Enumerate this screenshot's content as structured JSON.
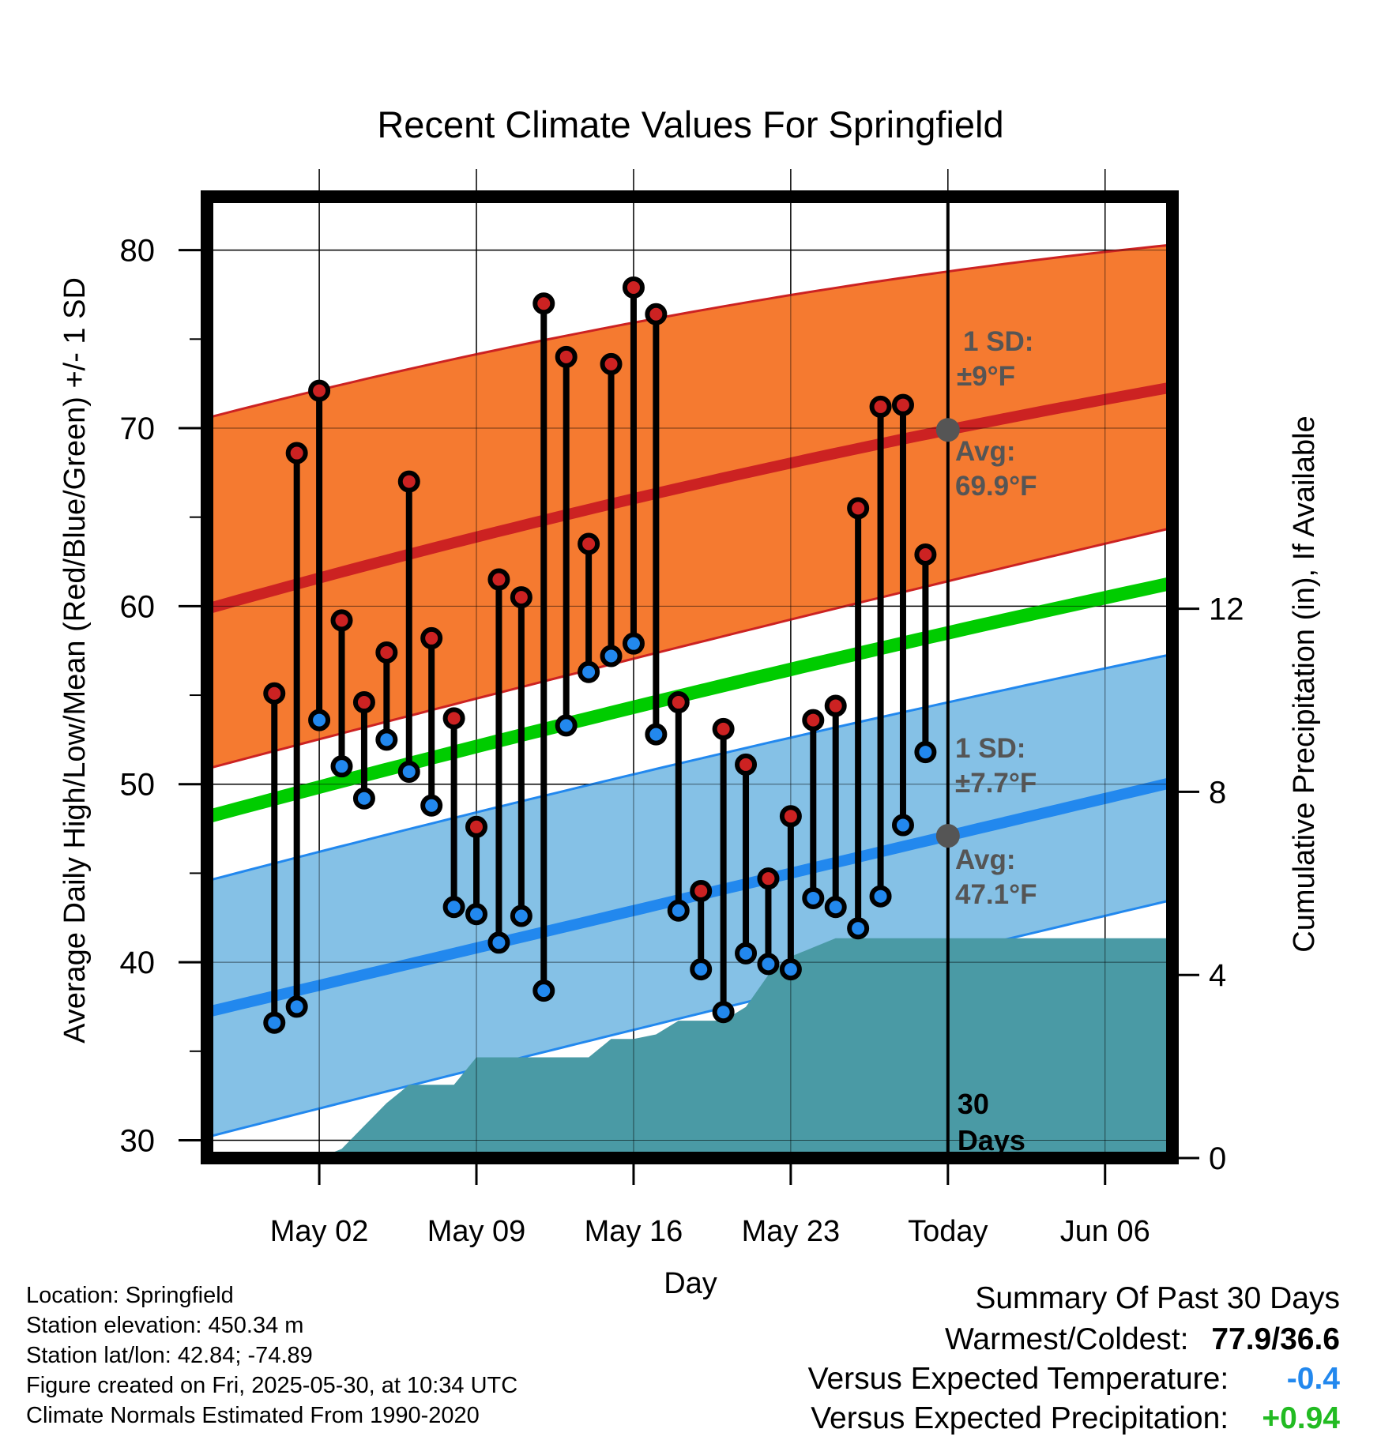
{
  "chart_data": {
    "type": "line",
    "title": "Recent Climate Values For Springfield",
    "xlabel": "Day",
    "ylabel": "Average Daily High/Low/Mean (Red/Blue/Green) +/- 1 SD",
    "y2label": "Cumulative Precipitation (in), If Available",
    "ylim": [
      29,
      83
    ],
    "y2lim": [
      0,
      21
    ],
    "xlim": [
      "2025-04-27",
      "2025-06-09"
    ],
    "x_ticks": [
      {
        "date": "2025-05-02",
        "label": "May 02"
      },
      {
        "date": "2025-05-09",
        "label": "May 09"
      },
      {
        "date": "2025-05-16",
        "label": "May 16"
      },
      {
        "date": "2025-05-23",
        "label": "May 23"
      },
      {
        "date": "2025-05-30",
        "label": "Today"
      },
      {
        "date": "2025-06-06",
        "label": "Jun 06"
      }
    ],
    "y_ticks": [
      30,
      40,
      50,
      60,
      70,
      80
    ],
    "y2_ticks": [
      0,
      4,
      8,
      12
    ],
    "grid": true,
    "today": "2025-05-30",
    "today_label": [
      "30",
      "Days"
    ],
    "normals": {
      "x": [
        "2025-04-28",
        "2025-05-30",
        "2025-06-09"
      ],
      "high_mean": [
        60.2,
        69.9,
        72.3
      ],
      "high_upper": [
        70.9,
        78.8,
        80.3
      ],
      "high_lower": [
        51.2,
        61.4,
        64.4
      ],
      "low_mean": [
        37.5,
        47.1,
        50.1
      ],
      "low_upper": [
        44.9,
        54.6,
        57.3
      ],
      "low_lower": [
        30.5,
        40.5,
        43.5
      ],
      "mean": [
        48.5,
        58.5,
        61.3
      ]
    },
    "series": [
      {
        "name": "Daily High",
        "color": "#cc2222",
        "x": [
          "2025-04-30",
          "2025-05-01",
          "2025-05-02",
          "2025-05-03",
          "2025-05-04",
          "2025-05-05",
          "2025-05-06",
          "2025-05-07",
          "2025-05-08",
          "2025-05-09",
          "2025-05-10",
          "2025-05-11",
          "2025-05-12",
          "2025-05-13",
          "2025-05-14",
          "2025-05-15",
          "2025-05-16",
          "2025-05-17",
          "2025-05-18",
          "2025-05-19",
          "2025-05-20",
          "2025-05-21",
          "2025-05-22",
          "2025-05-23",
          "2025-05-24",
          "2025-05-25",
          "2025-05-26",
          "2025-05-27",
          "2025-05-28",
          "2025-05-29"
        ],
        "values": [
          55.1,
          68.6,
          72.1,
          59.2,
          54.6,
          57.4,
          67.0,
          58.2,
          53.7,
          47.6,
          61.5,
          60.5,
          77.0,
          74.0,
          63.5,
          73.6,
          77.9,
          76.4,
          54.6,
          44.0,
          53.1,
          51.1,
          44.7,
          48.2,
          53.6,
          54.4,
          65.5,
          71.2,
          71.3,
          62.9
        ]
      },
      {
        "name": "Daily Low",
        "color": "#2288ee",
        "x": [
          "2025-04-30",
          "2025-05-01",
          "2025-05-02",
          "2025-05-03",
          "2025-05-04",
          "2025-05-05",
          "2025-05-06",
          "2025-05-07",
          "2025-05-08",
          "2025-05-09",
          "2025-05-10",
          "2025-05-11",
          "2025-05-12",
          "2025-05-13",
          "2025-05-14",
          "2025-05-15",
          "2025-05-16",
          "2025-05-17",
          "2025-05-18",
          "2025-05-19",
          "2025-05-20",
          "2025-05-21",
          "2025-05-22",
          "2025-05-23",
          "2025-05-24",
          "2025-05-25",
          "2025-05-26",
          "2025-05-27",
          "2025-05-28",
          "2025-05-29"
        ],
        "values": [
          36.6,
          37.5,
          53.6,
          51.0,
          49.2,
          52.5,
          50.7,
          48.8,
          43.1,
          42.7,
          41.1,
          42.6,
          38.4,
          53.3,
          56.3,
          57.2,
          57.9,
          52.8,
          42.9,
          39.6,
          37.2,
          40.5,
          39.9,
          39.6,
          43.6,
          43.1,
          41.9,
          43.7,
          47.7,
          51.8
        ]
      },
      {
        "name": "Cumulative Precipitation",
        "color": "#4a9aa5",
        "x": [
          "2025-04-27",
          "2025-05-01",
          "2025-05-02",
          "2025-05-03",
          "2025-05-04",
          "2025-05-05",
          "2025-05-06",
          "2025-05-07",
          "2025-05-08",
          "2025-05-09",
          "2025-05-10",
          "2025-05-11",
          "2025-05-12",
          "2025-05-13",
          "2025-05-14",
          "2025-05-15",
          "2025-05-16",
          "2025-05-17",
          "2025-05-18",
          "2025-05-19",
          "2025-05-20",
          "2025-05-21",
          "2025-05-22",
          "2025-05-23",
          "2025-05-24",
          "2025-05-25",
          "2025-05-26",
          "2025-05-27",
          "2025-05-28",
          "2025-05-29",
          "2025-05-30",
          "2025-06-09"
        ],
        "values": [
          0,
          0,
          0,
          0.2,
          0.7,
          1.2,
          1.6,
          1.6,
          1.6,
          2.2,
          2.2,
          2.2,
          2.2,
          2.2,
          2.2,
          2.6,
          2.6,
          2.7,
          3.0,
          3.0,
          3.0,
          3.3,
          4.0,
          4.4,
          4.6,
          4.8,
          4.8,
          4.8,
          4.8,
          4.8,
          4.8,
          4.8
        ]
      }
    ],
    "annotations": {
      "high_sd_label": "1 SD:",
      "high_sd_value": "±9°F",
      "high_avg_label": "Avg:",
      "high_avg_value": "69.9°F",
      "low_sd_label": "1 SD:",
      "low_sd_value": "±7.7°F",
      "low_avg_label": "Avg:",
      "low_avg_value": "47.1°F"
    }
  },
  "colors": {
    "high_band": "#f57a30",
    "high_line": "#cc2222",
    "low_band": "#85c1e6",
    "low_line": "#2288ee",
    "mean_line": "#00cc00",
    "precip": "#4a9aa5",
    "annotation": "#555555",
    "negative": "#2288ee",
    "positive": "#22bb22"
  },
  "footer": {
    "location": "Location: Springfield",
    "elevation": "Station elevation: 450.34 m",
    "latlon": "Station lat/lon: 42.84; -74.89",
    "created": "Figure created on Fri, 2025-05-30, at 10:34 UTC",
    "normals": "Climate Normals Estimated From 1990-2020"
  },
  "summary": {
    "title": "Summary Of Past 30 Days",
    "warm_cold_label": "Warmest/Coldest:",
    "warm_cold_value": "77.9/36.6",
    "temp_label": "Versus Expected Temperature:",
    "temp_value": "-0.4",
    "precip_label": "Versus Expected Precipitation:",
    "precip_value": "+0.94"
  }
}
